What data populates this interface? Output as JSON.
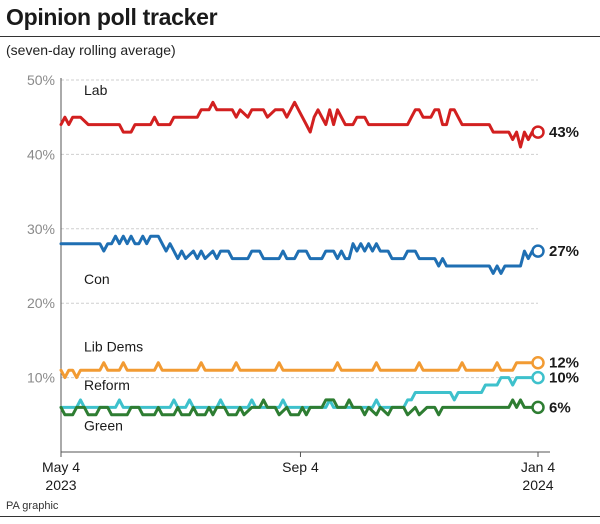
{
  "header": {
    "title": "Opinion poll tracker",
    "subtitle": "(seven-day rolling average)"
  },
  "footer": {
    "credit": "PA graphic"
  },
  "chart_data": {
    "type": "line",
    "title": "Opinion poll tracker",
    "subtitle": "(seven-day rolling average)",
    "xlabel": "",
    "ylabel": "",
    "ylim": [
      0,
      50
    ],
    "yticks": [
      10,
      20,
      30,
      40,
      50
    ],
    "ytick_labels": [
      "10%",
      "20%",
      "30%",
      "40%",
      "50%"
    ],
    "xlim": [
      0,
      245
    ],
    "xticks": [
      {
        "x": 0,
        "line1": "May 4",
        "line2": "2023"
      },
      {
        "x": 123,
        "line1": "Sep 4",
        "line2": ""
      },
      {
        "x": 245,
        "line1": "Jan 4",
        "line2": "2024"
      }
    ],
    "grid": true,
    "series": [
      {
        "name": "Lab",
        "color": "#d22020",
        "end_label": "43%",
        "points": [
          [
            0,
            44
          ],
          [
            2,
            45
          ],
          [
            4,
            44
          ],
          [
            6,
            45
          ],
          [
            10,
            45
          ],
          [
            14,
            44
          ],
          [
            30,
            44
          ],
          [
            32,
            43
          ],
          [
            36,
            43
          ],
          [
            38,
            44
          ],
          [
            46,
            44
          ],
          [
            48,
            45
          ],
          [
            50,
            44
          ],
          [
            56,
            44
          ],
          [
            58,
            45
          ],
          [
            70,
            45
          ],
          [
            72,
            46
          ],
          [
            76,
            46
          ],
          [
            78,
            47
          ],
          [
            80,
            46
          ],
          [
            88,
            46
          ],
          [
            90,
            45
          ],
          [
            92,
            46
          ],
          [
            96,
            45
          ],
          [
            98,
            46
          ],
          [
            104,
            46
          ],
          [
            106,
            45
          ],
          [
            110,
            46
          ],
          [
            114,
            46
          ],
          [
            116,
            45
          ],
          [
            118,
            46
          ],
          [
            120,
            47
          ],
          [
            122,
            46
          ],
          [
            124,
            45
          ],
          [
            126,
            44
          ],
          [
            128,
            43
          ],
          [
            130,
            45
          ],
          [
            132,
            46
          ],
          [
            134,
            45
          ],
          [
            136,
            44
          ],
          [
            138,
            46
          ],
          [
            140,
            44
          ],
          [
            142,
            46
          ],
          [
            144,
            45
          ],
          [
            146,
            44
          ],
          [
            150,
            44
          ],
          [
            152,
            45
          ],
          [
            156,
            45
          ],
          [
            158,
            44
          ],
          [
            178,
            44
          ],
          [
            180,
            45
          ],
          [
            182,
            46
          ],
          [
            184,
            46
          ],
          [
            186,
            45
          ],
          [
            190,
            45
          ],
          [
            192,
            46
          ],
          [
            194,
            46
          ],
          [
            196,
            44
          ],
          [
            198,
            44
          ],
          [
            200,
            46
          ],
          [
            202,
            46
          ],
          [
            204,
            45
          ],
          [
            206,
            44
          ],
          [
            220,
            44
          ],
          [
            222,
            43
          ],
          [
            230,
            43
          ],
          [
            232,
            42
          ],
          [
            234,
            43
          ],
          [
            236,
            41
          ],
          [
            238,
            43
          ],
          [
            240,
            42
          ],
          [
            242,
            43
          ],
          [
            245,
            43
          ]
        ]
      },
      {
        "name": "Con",
        "color": "#1f6fb3",
        "end_label": "27%",
        "points": [
          [
            0,
            28
          ],
          [
            20,
            28
          ],
          [
            22,
            27
          ],
          [
            24,
            28
          ],
          [
            26,
            28
          ],
          [
            28,
            29
          ],
          [
            30,
            28
          ],
          [
            32,
            29
          ],
          [
            34,
            28
          ],
          [
            36,
            29
          ],
          [
            38,
            28
          ],
          [
            40,
            28
          ],
          [
            42,
            29
          ],
          [
            44,
            28
          ],
          [
            46,
            29
          ],
          [
            50,
            29
          ],
          [
            52,
            28
          ],
          [
            54,
            27
          ],
          [
            56,
            28
          ],
          [
            58,
            27
          ],
          [
            60,
            26
          ],
          [
            62,
            27
          ],
          [
            64,
            26
          ],
          [
            68,
            27
          ],
          [
            70,
            26
          ],
          [
            72,
            27
          ],
          [
            74,
            26
          ],
          [
            78,
            27
          ],
          [
            80,
            26
          ],
          [
            82,
            27
          ],
          [
            86,
            27
          ],
          [
            88,
            26
          ],
          [
            96,
            26
          ],
          [
            98,
            27
          ],
          [
            102,
            27
          ],
          [
            104,
            26
          ],
          [
            112,
            26
          ],
          [
            114,
            27
          ],
          [
            116,
            26
          ],
          [
            120,
            26
          ],
          [
            122,
            27
          ],
          [
            126,
            27
          ],
          [
            128,
            26
          ],
          [
            134,
            26
          ],
          [
            136,
            27
          ],
          [
            140,
            27
          ],
          [
            142,
            26
          ],
          [
            144,
            27
          ],
          [
            146,
            26
          ],
          [
            148,
            26
          ],
          [
            150,
            28
          ],
          [
            152,
            27
          ],
          [
            154,
            28
          ],
          [
            156,
            27
          ],
          [
            158,
            28
          ],
          [
            160,
            27
          ],
          [
            162,
            28
          ],
          [
            164,
            27
          ],
          [
            168,
            27
          ],
          [
            170,
            26
          ],
          [
            176,
            26
          ],
          [
            178,
            27
          ],
          [
            182,
            27
          ],
          [
            184,
            26
          ],
          [
            192,
            26
          ],
          [
            194,
            25
          ],
          [
            196,
            26
          ],
          [
            198,
            25
          ],
          [
            220,
            25
          ],
          [
            222,
            24
          ],
          [
            224,
            25
          ],
          [
            226,
            24
          ],
          [
            228,
            25
          ],
          [
            236,
            25
          ],
          [
            238,
            27
          ],
          [
            240,
            26
          ],
          [
            242,
            27
          ],
          [
            245,
            27
          ]
        ]
      },
      {
        "name": "Lib Dems",
        "color": "#f29b33",
        "end_label": "12%",
        "points": [
          [
            0,
            11
          ],
          [
            2,
            10
          ],
          [
            4,
            11
          ],
          [
            6,
            11
          ],
          [
            8,
            10
          ],
          [
            10,
            11
          ],
          [
            20,
            11
          ],
          [
            22,
            12
          ],
          [
            24,
            11
          ],
          [
            30,
            11
          ],
          [
            32,
            12
          ],
          [
            34,
            11
          ],
          [
            48,
            11
          ],
          [
            50,
            12
          ],
          [
            52,
            11
          ],
          [
            70,
            11
          ],
          [
            72,
            12
          ],
          [
            74,
            11
          ],
          [
            88,
            11
          ],
          [
            90,
            12
          ],
          [
            92,
            11
          ],
          [
            110,
            11
          ],
          [
            112,
            12
          ],
          [
            114,
            11
          ],
          [
            140,
            11
          ],
          [
            142,
            12
          ],
          [
            144,
            11
          ],
          [
            160,
            11
          ],
          [
            162,
            12
          ],
          [
            164,
            11
          ],
          [
            182,
            11
          ],
          [
            184,
            12
          ],
          [
            186,
            11
          ],
          [
            204,
            11
          ],
          [
            206,
            12
          ],
          [
            208,
            11
          ],
          [
            222,
            11
          ],
          [
            224,
            12
          ],
          [
            226,
            11
          ],
          [
            232,
            11
          ],
          [
            234,
            12
          ],
          [
            245,
            12
          ]
        ]
      },
      {
        "name": "Reform",
        "color": "#3ec1cc",
        "end_label": "10%",
        "points": [
          [
            0,
            6
          ],
          [
            8,
            6
          ],
          [
            10,
            7
          ],
          [
            12,
            6
          ],
          [
            28,
            6
          ],
          [
            30,
            7
          ],
          [
            32,
            6
          ],
          [
            56,
            6
          ],
          [
            58,
            7
          ],
          [
            60,
            6
          ],
          [
            64,
            6
          ],
          [
            66,
            7
          ],
          [
            68,
            6
          ],
          [
            80,
            6
          ],
          [
            82,
            7
          ],
          [
            84,
            6
          ],
          [
            96,
            6
          ],
          [
            98,
            7
          ],
          [
            100,
            6
          ],
          [
            112,
            6
          ],
          [
            114,
            7
          ],
          [
            116,
            6
          ],
          [
            136,
            6
          ],
          [
            138,
            7
          ],
          [
            140,
            6
          ],
          [
            160,
            6
          ],
          [
            162,
            7
          ],
          [
            164,
            6
          ],
          [
            176,
            6
          ],
          [
            178,
            7
          ],
          [
            180,
            7
          ],
          [
            182,
            8
          ],
          [
            200,
            8
          ],
          [
            202,
            7
          ],
          [
            204,
            8
          ],
          [
            216,
            8
          ],
          [
            218,
            9
          ],
          [
            224,
            9
          ],
          [
            226,
            10
          ],
          [
            230,
            10
          ],
          [
            232,
            9
          ],
          [
            234,
            10
          ],
          [
            245,
            10
          ]
        ]
      },
      {
        "name": "Green",
        "color": "#2e7d32",
        "end_label": "6%",
        "points": [
          [
            0,
            6
          ],
          [
            2,
            5
          ],
          [
            6,
            5
          ],
          [
            8,
            6
          ],
          [
            12,
            6
          ],
          [
            14,
            5
          ],
          [
            18,
            5
          ],
          [
            20,
            6
          ],
          [
            24,
            6
          ],
          [
            26,
            5
          ],
          [
            34,
            5
          ],
          [
            36,
            6
          ],
          [
            40,
            6
          ],
          [
            42,
            5
          ],
          [
            48,
            5
          ],
          [
            50,
            6
          ],
          [
            52,
            5
          ],
          [
            58,
            5
          ],
          [
            60,
            6
          ],
          [
            62,
            5
          ],
          [
            66,
            5
          ],
          [
            68,
            6
          ],
          [
            70,
            5
          ],
          [
            74,
            5
          ],
          [
            76,
            6
          ],
          [
            78,
            5
          ],
          [
            80,
            6
          ],
          [
            84,
            6
          ],
          [
            86,
            5
          ],
          [
            90,
            5
          ],
          [
            92,
            6
          ],
          [
            94,
            5
          ],
          [
            98,
            6
          ],
          [
            102,
            6
          ],
          [
            104,
            7
          ],
          [
            106,
            6
          ],
          [
            110,
            6
          ],
          [
            112,
            5
          ],
          [
            116,
            6
          ],
          [
            118,
            5
          ],
          [
            122,
            5
          ],
          [
            124,
            6
          ],
          [
            126,
            5
          ],
          [
            128,
            6
          ],
          [
            134,
            6
          ],
          [
            136,
            7
          ],
          [
            140,
            7
          ],
          [
            142,
            6
          ],
          [
            146,
            6
          ],
          [
            148,
            7
          ],
          [
            150,
            6
          ],
          [
            154,
            6
          ],
          [
            156,
            5
          ],
          [
            158,
            6
          ],
          [
            162,
            5
          ],
          [
            164,
            6
          ],
          [
            168,
            5
          ],
          [
            170,
            6
          ],
          [
            176,
            6
          ],
          [
            178,
            5
          ],
          [
            182,
            6
          ],
          [
            184,
            5
          ],
          [
            188,
            6
          ],
          [
            192,
            6
          ],
          [
            194,
            5
          ],
          [
            196,
            6
          ],
          [
            214,
            6
          ],
          [
            216,
            6
          ],
          [
            230,
            6
          ],
          [
            232,
            7
          ],
          [
            234,
            6
          ],
          [
            236,
            7
          ],
          [
            238,
            6
          ],
          [
            245,
            6
          ]
        ]
      }
    ]
  }
}
